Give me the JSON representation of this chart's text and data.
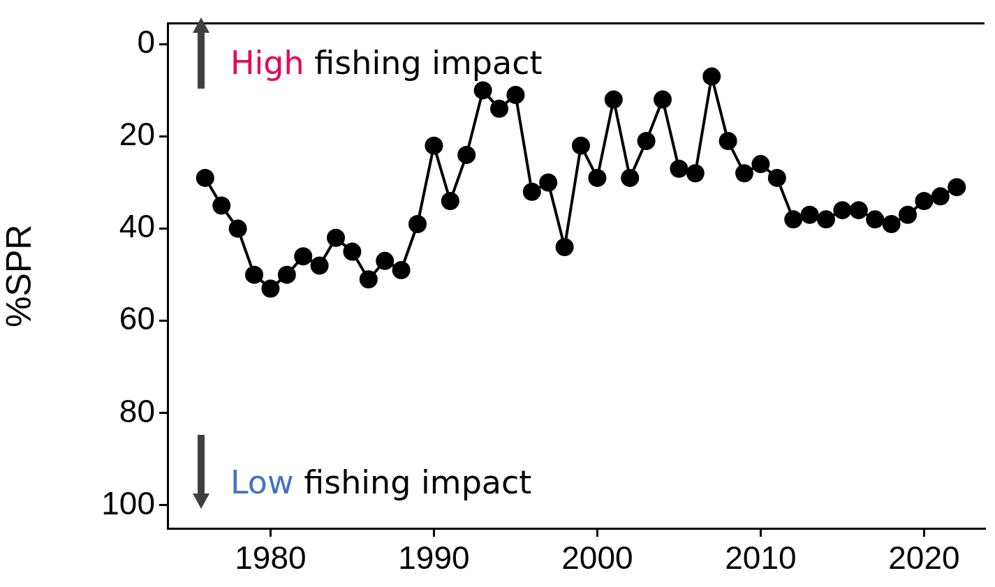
{
  "chart_data": {
    "type": "line",
    "ylabel": "%SPR",
    "x": [
      1976,
      1977,
      1978,
      1979,
      1980,
      1981,
      1982,
      1983,
      1984,
      1985,
      1986,
      1987,
      1988,
      1989,
      1990,
      1991,
      1992,
      1993,
      1994,
      1995,
      1996,
      1997,
      1998,
      1999,
      2000,
      2001,
      2002,
      2003,
      2004,
      2005,
      2006,
      2007,
      2008,
      2009,
      2010,
      2011,
      2012,
      2013,
      2014,
      2015,
      2016,
      2017,
      2018,
      2019,
      2020,
      2021,
      2022
    ],
    "series": [
      {
        "color": "#000000",
        "values": [
          29,
          35,
          40,
          50,
          53,
          50,
          46,
          48,
          42,
          45,
          51,
          47,
          49,
          39,
          22,
          34,
          24,
          10,
          14,
          11,
          32,
          30,
          44,
          22,
          29,
          12,
          29,
          21,
          12,
          27,
          28,
          7,
          21,
          28,
          26,
          29,
          38,
          37,
          38,
          36,
          36,
          38,
          39,
          37,
          34,
          33,
          31
        ]
      }
    ],
    "xlim": [
      1973.7,
      2023.7
    ],
    "xticks": [
      1980,
      1990,
      2000,
      2010,
      2020
    ],
    "ylim": [
      105,
      -4.5
    ],
    "yticks": [
      0,
      20,
      40,
      60,
      80,
      100
    ],
    "grid": false,
    "legend": false,
    "marker": "circle",
    "line_style": "solid",
    "annotations": [
      "High fishing impact",
      "Low fishing impact"
    ]
  }
}
